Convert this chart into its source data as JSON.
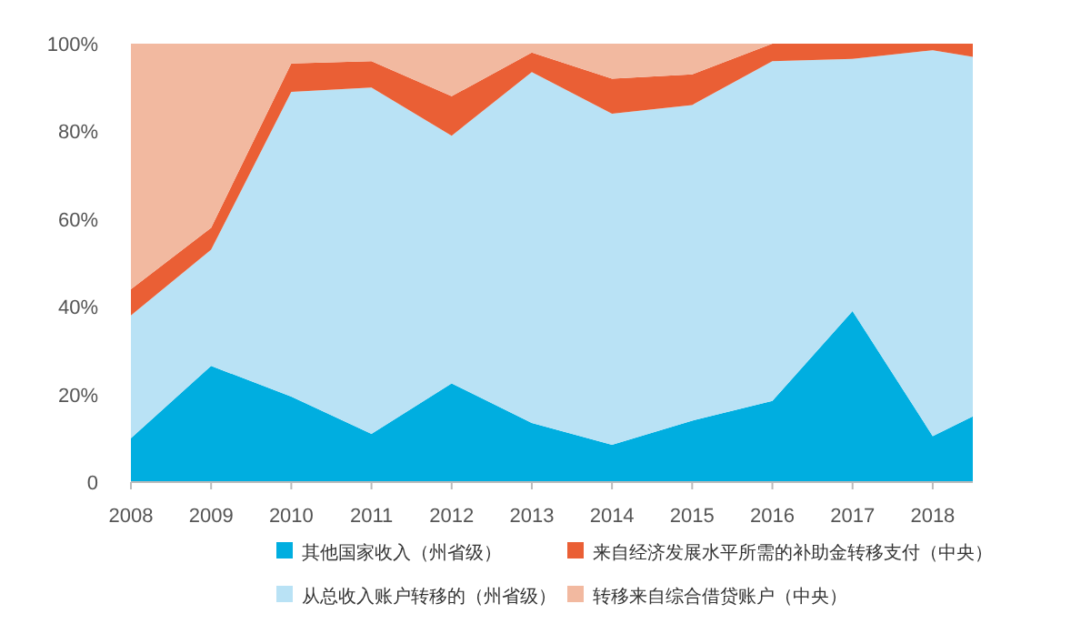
{
  "chart_data": {
    "type": "area",
    "stacked": true,
    "x": [
      2008,
      2009,
      2010,
      2011,
      2012,
      2013,
      2014,
      2015,
      2016,
      2017,
      2018,
      2018.5
    ],
    "series": [
      {
        "name": "其他国家收入（州省级）",
        "color": "#00aee0",
        "values": [
          10,
          26.5,
          19.5,
          11,
          22.5,
          13.5,
          8.5,
          14,
          18.5,
          39,
          10.5,
          15
        ]
      },
      {
        "name": "从总收入账户转移的（州省级）",
        "color": "#b9e2f5",
        "values": [
          28,
          26.5,
          69.5,
          79,
          56.5,
          80,
          75.5,
          72,
          77.5,
          57.5,
          88,
          82
        ]
      },
      {
        "name": "来自经济发展水平所需的补助金转移支付（中央）",
        "color": "#ea5f35",
        "values": [
          6,
          5,
          6.5,
          6,
          9,
          4.5,
          8,
          7,
          4,
          3.5,
          1.5,
          3
        ]
      },
      {
        "name": "转移来自综合借贷账户（中央）",
        "color": "#f2b9a0",
        "values": [
          56,
          42,
          4.5,
          4,
          12,
          2,
          8,
          7,
          0,
          0,
          0,
          0
        ]
      }
    ],
    "xlim": [
      2008,
      2018.5
    ],
    "xticks": [
      2008,
      2009,
      2010,
      2011,
      2012,
      2013,
      2014,
      2015,
      2016,
      2017,
      2018
    ],
    "ylim": [
      0,
      100
    ],
    "yticks": [
      {
        "value": 0,
        "label": "0"
      },
      {
        "value": 20,
        "label": "20%"
      },
      {
        "value": 40,
        "label": "40%"
      },
      {
        "value": 60,
        "label": "60%"
      },
      {
        "value": 80,
        "label": "80%"
      },
      {
        "value": 100,
        "label": "100%"
      }
    ],
    "grid": false,
    "legend": "bottom"
  }
}
